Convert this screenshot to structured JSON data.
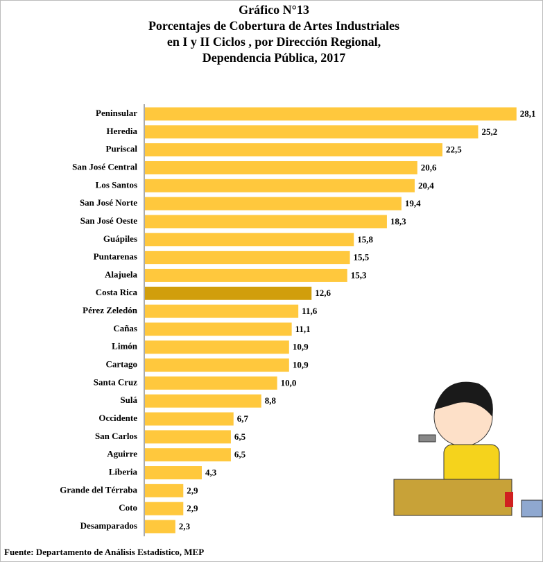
{
  "chart_data": {
    "type": "barh",
    "title": [
      "Gráfico N°13",
      "Porcentajes de Cobertura de Artes Industriales",
      "en I y II Ciclos , por Dirección Regional,",
      "Dependencia Pública,  2017"
    ],
    "categories": [
      "Peninsular",
      "Heredia",
      "Puriscal",
      "San José Central",
      "Los Santos",
      "San José Norte",
      "San José Oeste",
      "Guápiles",
      "Puntarenas",
      "Alajuela",
      "Costa Rica",
      "Pérez Zeledón",
      "Cañas",
      "Limón",
      "Cartago",
      "Santa Cruz",
      "Sulá",
      "Occidente",
      "San Carlos",
      "Aguirre",
      "Liberia",
      "Grande del Térraba",
      "Coto",
      "Desamparados"
    ],
    "values": [
      28.1,
      25.2,
      22.5,
      20.6,
      20.4,
      19.4,
      18.3,
      15.8,
      15.5,
      15.3,
      12.6,
      11.6,
      11.1,
      10.9,
      10.9,
      10.0,
      8.8,
      6.7,
      6.5,
      6.5,
      4.3,
      2.9,
      2.9,
      2.3
    ],
    "value_labels": [
      "28,1",
      "25,2",
      "22,5",
      "20,6",
      "20,4",
      "19,4",
      "18,3",
      "15,8",
      "15,5",
      "15,3",
      "12,6",
      "11,6",
      "11,1",
      "10,9",
      "10,9",
      "10,0",
      "8,8",
      "6,7",
      "6,5",
      "6,5",
      "4,3",
      "2,9",
      "2,9",
      "2,3"
    ],
    "colors": [
      "#FFC83D",
      "#FFC83D",
      "#FFC83D",
      "#FFC83D",
      "#FFC83D",
      "#FFC83D",
      "#FFC83D",
      "#FFC83D",
      "#FFC83D",
      "#FFC83D",
      "#D19E0C",
      "#FFC83D",
      "#FFC83D",
      "#FFC83D",
      "#FFC83D",
      "#FFC83D",
      "#FFC83D",
      "#FFC83D",
      "#FFC83D",
      "#FFC83D",
      "#FFC83D",
      "#FFC83D",
      "#FFC83D",
      "#FFC83D"
    ],
    "xlim": [
      0,
      30
    ],
    "source": "Fuente: Departamento de Análisis Estadístico, MEP"
  }
}
